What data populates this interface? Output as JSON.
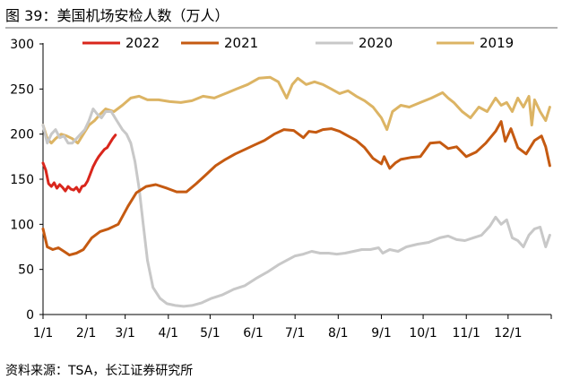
{
  "figure_label": "图 39：",
  "chart_data": {
    "type": "line",
    "title": "美国机场安检人数（万人）",
    "xlabel": "",
    "ylabel": "",
    "ylim": [
      0,
      300
    ],
    "yticks": [
      0,
      50,
      100,
      150,
      200,
      250,
      300
    ],
    "xticks": [
      "1/1",
      "2/1",
      "3/1",
      "4/1",
      "5/1",
      "6/1",
      "7/1",
      "8/1",
      "9/1",
      "10/1",
      "11/1",
      "12/1"
    ],
    "x_unit": "day of year",
    "legend_position": "top",
    "grid": false,
    "series": [
      {
        "name": "2022",
        "color": "#d9261c",
        "x": [
          1,
          3,
          5,
          7,
          9,
          11,
          13,
          15,
          17,
          19,
          21,
          23,
          25,
          27,
          29,
          31,
          33,
          35,
          37,
          39,
          41,
          43,
          45,
          47,
          49,
          51,
          53
        ],
        "values": [
          168,
          160,
          145,
          142,
          146,
          140,
          144,
          141,
          137,
          142,
          139,
          138,
          141,
          136,
          142,
          143,
          148,
          156,
          164,
          170,
          175,
          179,
          183,
          185,
          190,
          195,
          199
        ]
      },
      {
        "name": "2021",
        "color": "#c55a11",
        "x": [
          1,
          4,
          8,
          12,
          16,
          20,
          25,
          30,
          36,
          42,
          48,
          55,
          62,
          68,
          75,
          82,
          90,
          97,
          104,
          111,
          118,
          125,
          132,
          139,
          146,
          153,
          160,
          167,
          174,
          181,
          188,
          192,
          197,
          202,
          208,
          214,
          220,
          226,
          232,
          238,
          244,
          246,
          250,
          254,
          258,
          265,
          272,
          279,
          286,
          292,
          298,
          305,
          312,
          319,
          326,
          330,
          333,
          337,
          342,
          348,
          354,
          359,
          362,
          365
        ],
        "values": [
          95,
          75,
          72,
          74,
          70,
          66,
          68,
          72,
          85,
          92,
          95,
          100,
          120,
          135,
          142,
          144,
          140,
          136,
          136,
          145,
          155,
          165,
          172,
          178,
          183,
          188,
          193,
          200,
          205,
          204,
          196,
          203,
          202,
          205,
          206,
          203,
          198,
          193,
          185,
          173,
          167,
          175,
          162,
          168,
          172,
          174,
          175,
          190,
          191,
          184,
          186,
          175,
          180,
          190,
          203,
          214,
          192,
          206,
          185,
          178,
          193,
          198,
          186,
          165
        ]
      },
      {
        "name": "2020",
        "color": "#c8c8c8",
        "x": [
          1,
          4,
          7,
          10,
          13,
          16,
          19,
          22,
          25,
          28,
          31,
          34,
          37,
          40,
          43,
          46,
          50,
          54,
          58,
          61,
          64,
          67,
          70,
          73,
          76,
          80,
          85,
          90,
          96,
          102,
          108,
          115,
          122,
          130,
          138,
          146,
          154,
          162,
          170,
          176,
          182,
          188,
          194,
          200,
          206,
          212,
          218,
          224,
          230,
          236,
          242,
          245,
          250,
          256,
          262,
          270,
          278,
          286,
          292,
          298,
          304,
          310,
          316,
          322,
          326,
          330,
          334,
          338,
          342,
          346,
          350,
          354,
          358,
          362,
          365
        ],
        "values": [
          210,
          190,
          200,
          205,
          196,
          198,
          190,
          190,
          195,
          200,
          205,
          215,
          228,
          222,
          218,
          225,
          225,
          215,
          205,
          200,
          190,
          170,
          140,
          100,
          60,
          30,
          18,
          12,
          10,
          9,
          10,
          13,
          18,
          22,
          28,
          32,
          40,
          47,
          55,
          60,
          65,
          67,
          70,
          68,
          68,
          67,
          68,
          70,
          72,
          72,
          74,
          68,
          72,
          70,
          75,
          78,
          80,
          85,
          87,
          83,
          82,
          85,
          88,
          98,
          108,
          100,
          105,
          85,
          82,
          75,
          88,
          95,
          97,
          75,
          88
        ]
      },
      {
        "name": "2019",
        "color": "#dcb464",
        "x": [
          1,
          4,
          7,
          10,
          14,
          18,
          22,
          26,
          30,
          34,
          38,
          42,
          46,
          52,
          58,
          64,
          70,
          76,
          84,
          92,
          100,
          108,
          116,
          124,
          132,
          140,
          148,
          156,
          164,
          170,
          176,
          180,
          184,
          190,
          196,
          202,
          208,
          214,
          220,
          226,
          232,
          238,
          244,
          248,
          252,
          258,
          264,
          272,
          280,
          288,
          292,
          296,
          302,
          308,
          314,
          320,
          326,
          330,
          334,
          338,
          342,
          346,
          350,
          352,
          354,
          358,
          362,
          365
        ],
        "values": [
          210,
          195,
          190,
          195,
          200,
          198,
          195,
          190,
          200,
          210,
          215,
          222,
          228,
          225,
          232,
          240,
          242,
          238,
          238,
          236,
          235,
          237,
          242,
          240,
          245,
          250,
          255,
          262,
          263,
          258,
          240,
          255,
          262,
          255,
          258,
          255,
          250,
          245,
          248,
          242,
          237,
          230,
          218,
          205,
          225,
          232,
          230,
          235,
          240,
          246,
          240,
          235,
          225,
          218,
          230,
          225,
          240,
          232,
          235,
          225,
          240,
          230,
          242,
          210,
          238,
          225,
          215,
          230
        ]
      }
    ]
  },
  "source": "资料来源：TSA，长江证券研究所"
}
